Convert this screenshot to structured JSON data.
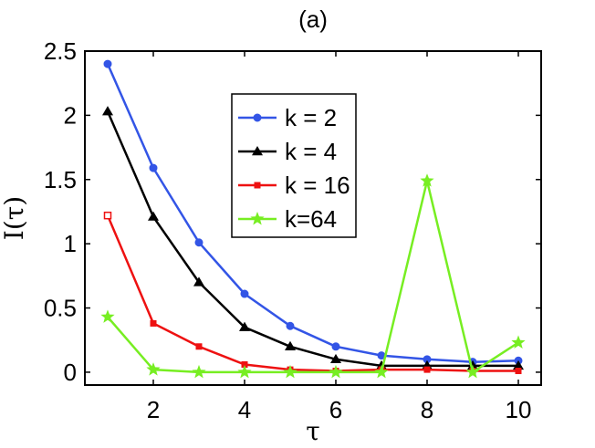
{
  "chart_data": {
    "type": "line",
    "title": "(a)",
    "xlabel": "τ",
    "ylabel": "I(τ)",
    "xlim": [
      0.5,
      10.5
    ],
    "ylim": [
      -0.1,
      2.5
    ],
    "xticks": [
      2,
      4,
      6,
      8,
      10
    ],
    "xtick_labels": [
      "2",
      "4",
      "6",
      "8",
      "10"
    ],
    "yticks": [
      0,
      0.5,
      1,
      1.5,
      2,
      2.5
    ],
    "ytick_labels": [
      "0",
      "0.5",
      "1",
      "1.5",
      "2",
      "2.5"
    ],
    "grid": false,
    "legend_position": "upper-center",
    "x": [
      1,
      2,
      3,
      4,
      5,
      6,
      7,
      8,
      9,
      10
    ],
    "series": [
      {
        "name": "k = 2",
        "color": "#3355e6",
        "marker": "circle",
        "values": [
          2.4,
          1.59,
          1.01,
          0.61,
          0.36,
          0.2,
          0.13,
          0.1,
          0.08,
          0.09
        ]
      },
      {
        "name": "k = 4",
        "color": "#000000",
        "marker": "triangle",
        "values": [
          2.03,
          1.21,
          0.7,
          0.35,
          0.2,
          0.1,
          0.05,
          0.05,
          0.05,
          0.05
        ]
      },
      {
        "name": "k = 16",
        "color": "#ee1111",
        "marker": "square",
        "values": [
          1.22,
          0.38,
          0.2,
          0.06,
          0.02,
          0.01,
          0.02,
          0.02,
          0.01,
          0.01
        ]
      },
      {
        "name": "k=64",
        "color": "#77ee22",
        "marker": "star",
        "values": [
          0.43,
          0.02,
          0.0,
          0.0,
          0.0,
          0.0,
          0.0,
          1.49,
          0.0,
          0.23
        ]
      }
    ]
  }
}
